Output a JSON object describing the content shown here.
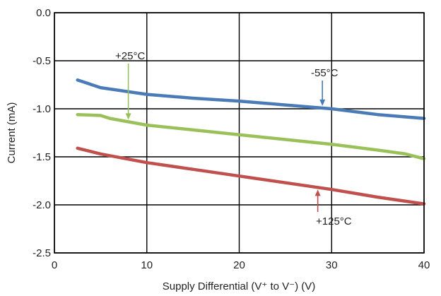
{
  "chart_data": {
    "type": "line",
    "xlabel": "Supply Differential (V⁺ to V⁻) (V)",
    "ylabel": "Current (mA)",
    "xlim": [
      0,
      40
    ],
    "ylim": [
      -2.5,
      0
    ],
    "xticks": [
      0,
      10,
      20,
      30,
      40
    ],
    "yticks": [
      0.0,
      -0.5,
      -1.0,
      -1.5,
      -2.0,
      -2.5
    ],
    "xtick_labels": [
      "0",
      "10",
      "20",
      "30",
      "40"
    ],
    "ytick_labels": [
      "0.0",
      "-0.5",
      "-1.0",
      "-1.5",
      "-2.0",
      "-2.5"
    ],
    "grid": true,
    "series": [
      {
        "name": "-55°C",
        "color": "#4a7bb7",
        "x": [
          2.5,
          5,
          10,
          15,
          20,
          25,
          30,
          35,
          40
        ],
        "y": [
          -0.7,
          -0.78,
          -0.85,
          -0.89,
          -0.92,
          -0.96,
          -1.0,
          -1.06,
          -1.1
        ]
      },
      {
        "name": "+25°C",
        "color": "#9ac05a",
        "x": [
          2.5,
          5,
          6,
          10,
          15,
          20,
          25,
          30,
          35,
          38,
          40
        ],
        "y": [
          -1.06,
          -1.07,
          -1.1,
          -1.17,
          -1.22,
          -1.27,
          -1.32,
          -1.37,
          -1.43,
          -1.47,
          -1.52
        ]
      },
      {
        "name": "+125°C",
        "color": "#c0504d",
        "x": [
          2.5,
          5,
          10,
          15,
          20,
          25,
          30,
          35,
          40
        ],
        "y": [
          -1.41,
          -1.47,
          -1.56,
          -1.63,
          -1.7,
          -1.77,
          -1.84,
          -1.92,
          -1.99
        ]
      }
    ],
    "annotations": [
      {
        "text": "-55°C",
        "series": 0
      },
      {
        "text": "+25°C",
        "series": 1
      },
      {
        "text": "+125°C",
        "series": 2
      }
    ]
  }
}
